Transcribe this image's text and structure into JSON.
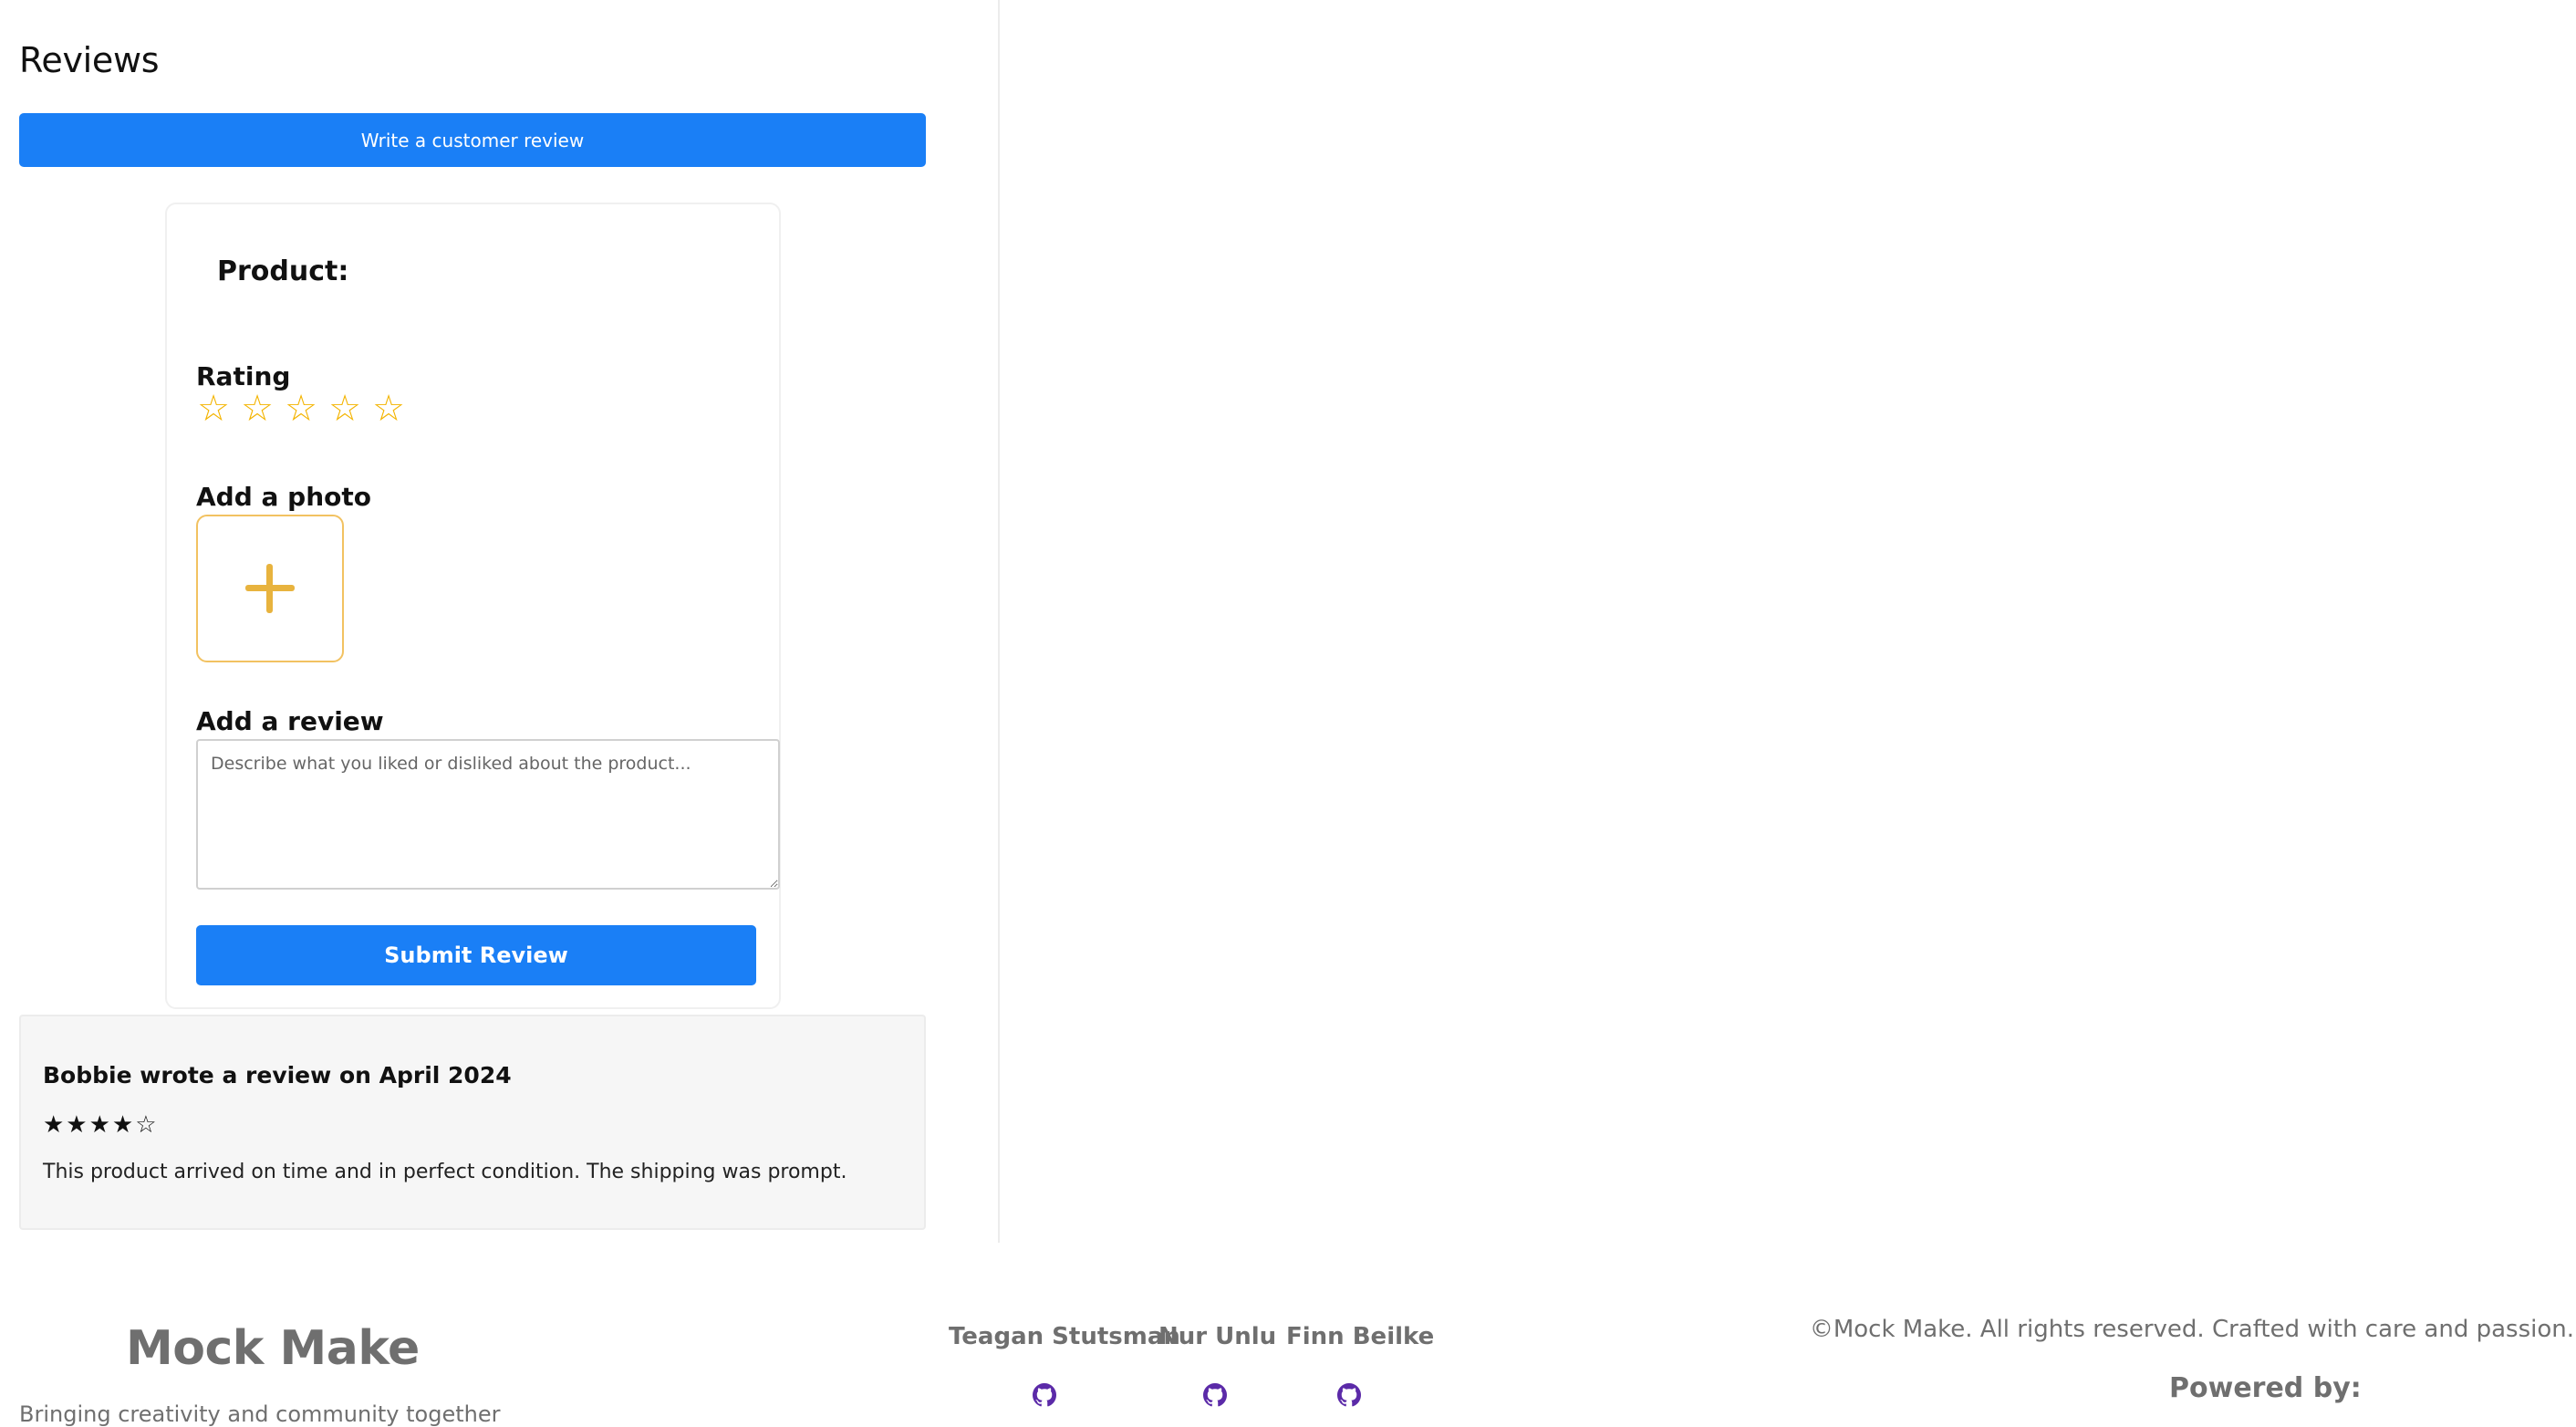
{
  "reviews": {
    "heading": "Reviews",
    "write_button_label": "Write a customer review"
  },
  "form": {
    "product_label": "Product:",
    "rating_label": "Rating",
    "rating_value": 0,
    "rating_max": 5,
    "empty_star_glyph": "☆",
    "star_color": "#f4b400",
    "photo_label": "Add a photo",
    "review_label": "Add a review",
    "review_value": "",
    "review_placeholder": "Describe what you liked or disliked about the product...",
    "submit_label": "Submit Review"
  },
  "review_list": [
    {
      "author_line": "Bobbie wrote a review on April 2024",
      "stars_display": "★★★★☆",
      "rating": 4,
      "rating_max": 5,
      "text": "This product arrived on time and in perfect condition. The shipping was prompt."
    }
  ],
  "footer": {
    "brand": "Mock Make",
    "tagline": "Bringing creativity and community together",
    "contributors": [
      {
        "name": "Teagan Stutsman",
        "icon": "github-icon"
      },
      {
        "name": "Nur Unlu",
        "icon": "github-icon"
      },
      {
        "name": "Finn Beilke",
        "icon": "github-icon"
      }
    ],
    "copyright": "©Mock Make. All rights reserved. Crafted with care and passion.",
    "powered_by": "Powered by:"
  },
  "colors": {
    "primary_button": "#1a7ff6",
    "star": "#f4b400",
    "photo_border": "#f2c261",
    "github_icon": "#5b2aa8",
    "footer_text": "#6f6f6f"
  }
}
